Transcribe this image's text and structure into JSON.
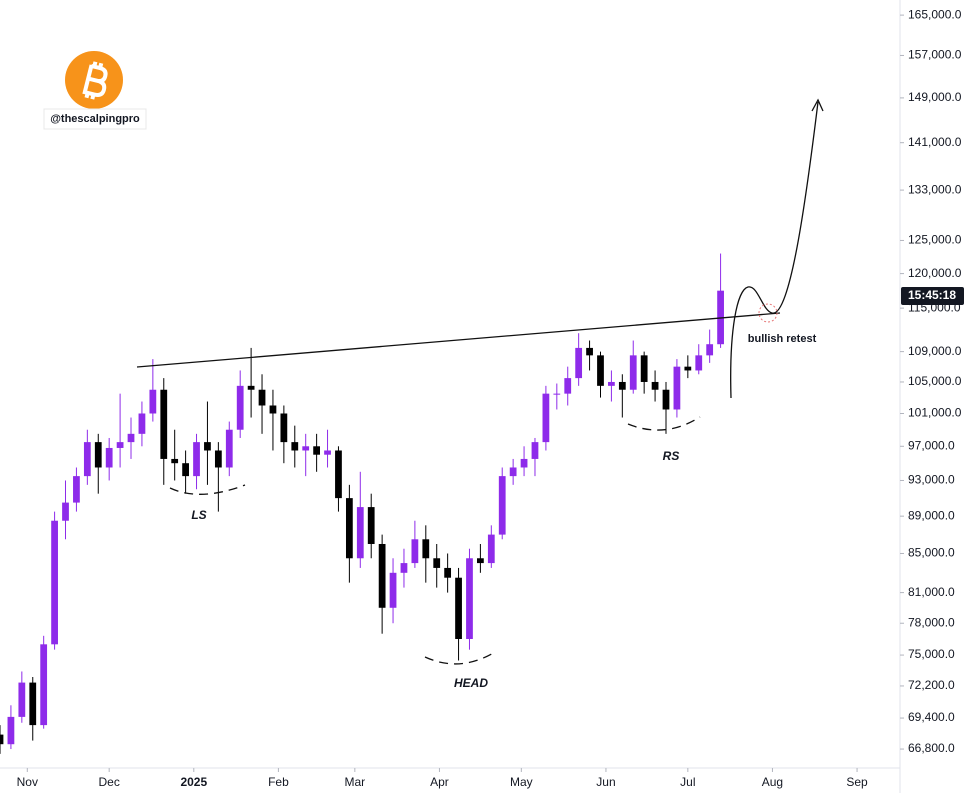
{
  "watermark": "@thescalpingpro",
  "chart_data": {
    "type": "candlestick",
    "log_scale": true,
    "grid": false,
    "up_color": "#8e2bea",
    "down_color": "#000000",
    "countdown": "15:45:18",
    "annotations": {
      "left_shoulder": "LS",
      "head": "HEAD",
      "right_shoulder": "RS",
      "retest": "bullish retest"
    },
    "xlim": [
      -10,
      319
    ],
    "xticks": [
      {
        "value": 0,
        "label": "Nov"
      },
      {
        "value": 30,
        "label": "Dec"
      },
      {
        "value": 61,
        "label": "2025"
      },
      {
        "value": 92,
        "label": "Feb"
      },
      {
        "value": 120,
        "label": "Mar"
      },
      {
        "value": 151,
        "label": "Apr"
      },
      {
        "value": 181,
        "label": "May"
      },
      {
        "value": 212,
        "label": "Jun"
      },
      {
        "value": 242,
        "label": "Jul"
      },
      {
        "value": 273,
        "label": "Aug"
      },
      {
        "value": 304,
        "label": "Sep"
      }
    ],
    "ylim": [
      65500,
      168100
    ],
    "yticks": [
      {
        "value": 165000,
        "label": "165,000.0"
      },
      {
        "value": 157000,
        "label": "157,000.0"
      },
      {
        "value": 149000,
        "label": "149,000.0"
      },
      {
        "value": 141000,
        "label": "141,000.0"
      },
      {
        "value": 133000,
        "label": "133,000.0"
      },
      {
        "value": 125000,
        "label": "125,000.0"
      },
      {
        "value": 120000,
        "label": "120,000.0"
      },
      {
        "value": 115000,
        "label": "115,000.0"
      },
      {
        "value": 109000,
        "label": "109,000.0"
      },
      {
        "value": 105000,
        "label": "105,000.0"
      },
      {
        "value": 101000,
        "label": "101,000.0"
      },
      {
        "value": 97000,
        "label": "97,000.0"
      },
      {
        "value": 93000,
        "label": "93,000.0"
      },
      {
        "value": 89000,
        "label": "89,000.0"
      },
      {
        "value": 85000,
        "label": "85,000.0"
      },
      {
        "value": 81000,
        "label": "81,000.0"
      },
      {
        "value": 78000,
        "label": "78,000.0"
      },
      {
        "value": 75000,
        "label": "75,000.0"
      },
      {
        "value": 72200,
        "label": "72,200.0"
      },
      {
        "value": 69400,
        "label": "69,400.0"
      },
      {
        "value": 66800,
        "label": "66,800.0"
      }
    ],
    "x": [
      -10,
      -6,
      -2,
      2,
      6,
      10,
      14,
      18,
      22,
      26,
      30,
      34,
      38,
      42,
      46,
      50,
      54,
      58,
      62,
      66,
      70,
      74,
      78,
      82,
      86,
      90,
      94,
      98,
      102,
      106,
      110,
      114,
      118,
      122,
      126,
      130,
      134,
      138,
      142,
      146,
      150,
      154,
      158,
      162,
      166,
      170,
      174,
      178,
      182,
      186,
      190,
      194,
      198,
      202,
      206,
      210,
      214,
      218,
      222,
      226,
      230,
      234,
      238,
      242,
      246,
      250,
      254
    ],
    "open": [
      68000,
      67200,
      69500,
      72500,
      68800,
      76000,
      88500,
      90500,
      93500,
      97500,
      94500,
      96800,
      97500,
      98500,
      101000,
      104000,
      95500,
      95000,
      93500,
      97500,
      96500,
      94500,
      99000,
      104500,
      104000,
      102000,
      101000,
      97500,
      96500,
      97000,
      96000,
      96500,
      91000,
      84500,
      90000,
      86000,
      79500,
      83000,
      84000,
      86500,
      84500,
      83500,
      82500,
      76500,
      84500,
      84000,
      87000,
      93500,
      94500,
      95500,
      97500,
      103500,
      103500,
      105500,
      109500,
      108500,
      104500,
      105000,
      104000,
      108500,
      105000,
      104000,
      101500,
      107000,
      106500,
      108500,
      110000
    ],
    "high": [
      68800,
      70500,
      73500,
      73000,
      76800,
      89500,
      93000,
      94500,
      99000,
      98500,
      98000,
      103500,
      100500,
      102500,
      108000,
      105500,
      99000,
      96500,
      98500,
      102500,
      97500,
      100000,
      106500,
      109500,
      106000,
      104000,
      102000,
      99500,
      98500,
      98500,
      99000,
      97000,
      92500,
      94000,
      91500,
      87000,
      84500,
      85500,
      88500,
      88000,
      86000,
      85000,
      83500,
      85500,
      86000,
      88000,
      94500,
      95500,
      97000,
      98000,
      104500,
      104800,
      107000,
      111500,
      110500,
      109000,
      106500,
      106000,
      110500,
      109000,
      106500,
      105000,
      108000,
      108500,
      110000,
      112000,
      123000
    ],
    "low": [
      66400,
      66800,
      69000,
      67500,
      68500,
      75500,
      86500,
      89500,
      92500,
      91500,
      93000,
      94500,
      95500,
      97000,
      100000,
      92500,
      93000,
      91500,
      92000,
      92500,
      89500,
      93500,
      98000,
      100500,
      98500,
      96500,
      95000,
      94500,
      93500,
      94000,
      94500,
      89500,
      82000,
      83500,
      84500,
      77000,
      78000,
      81500,
      83500,
      82000,
      81500,
      81000,
      74500,
      75500,
      83000,
      83500,
      86500,
      92500,
      93500,
      93500,
      96500,
      101500,
      102000,
      104500,
      106500,
      103000,
      102500,
      100500,
      103500,
      103500,
      102500,
      98500,
      100500,
      105500,
      106000,
      107500,
      109500
    ],
    "close": [
      67200,
      69500,
      72500,
      68800,
      76000,
      88500,
      90500,
      93500,
      97500,
      94500,
      96800,
      97500,
      98500,
      101000,
      104000,
      95500,
      95000,
      93500,
      97500,
      96500,
      94500,
      99000,
      104500,
      104000,
      102000,
      101000,
      97500,
      96500,
      97000,
      96000,
      96500,
      91000,
      84500,
      90000,
      86000,
      79500,
      83000,
      84000,
      86500,
      84500,
      83500,
      82500,
      76500,
      84500,
      84000,
      87000,
      93500,
      94500,
      95500,
      97500,
      103500,
      103500,
      105500,
      109500,
      108500,
      104500,
      105000,
      104000,
      108500,
      105000,
      104000,
      101500,
      107000,
      106500,
      108500,
      110000,
      117500
    ]
  }
}
